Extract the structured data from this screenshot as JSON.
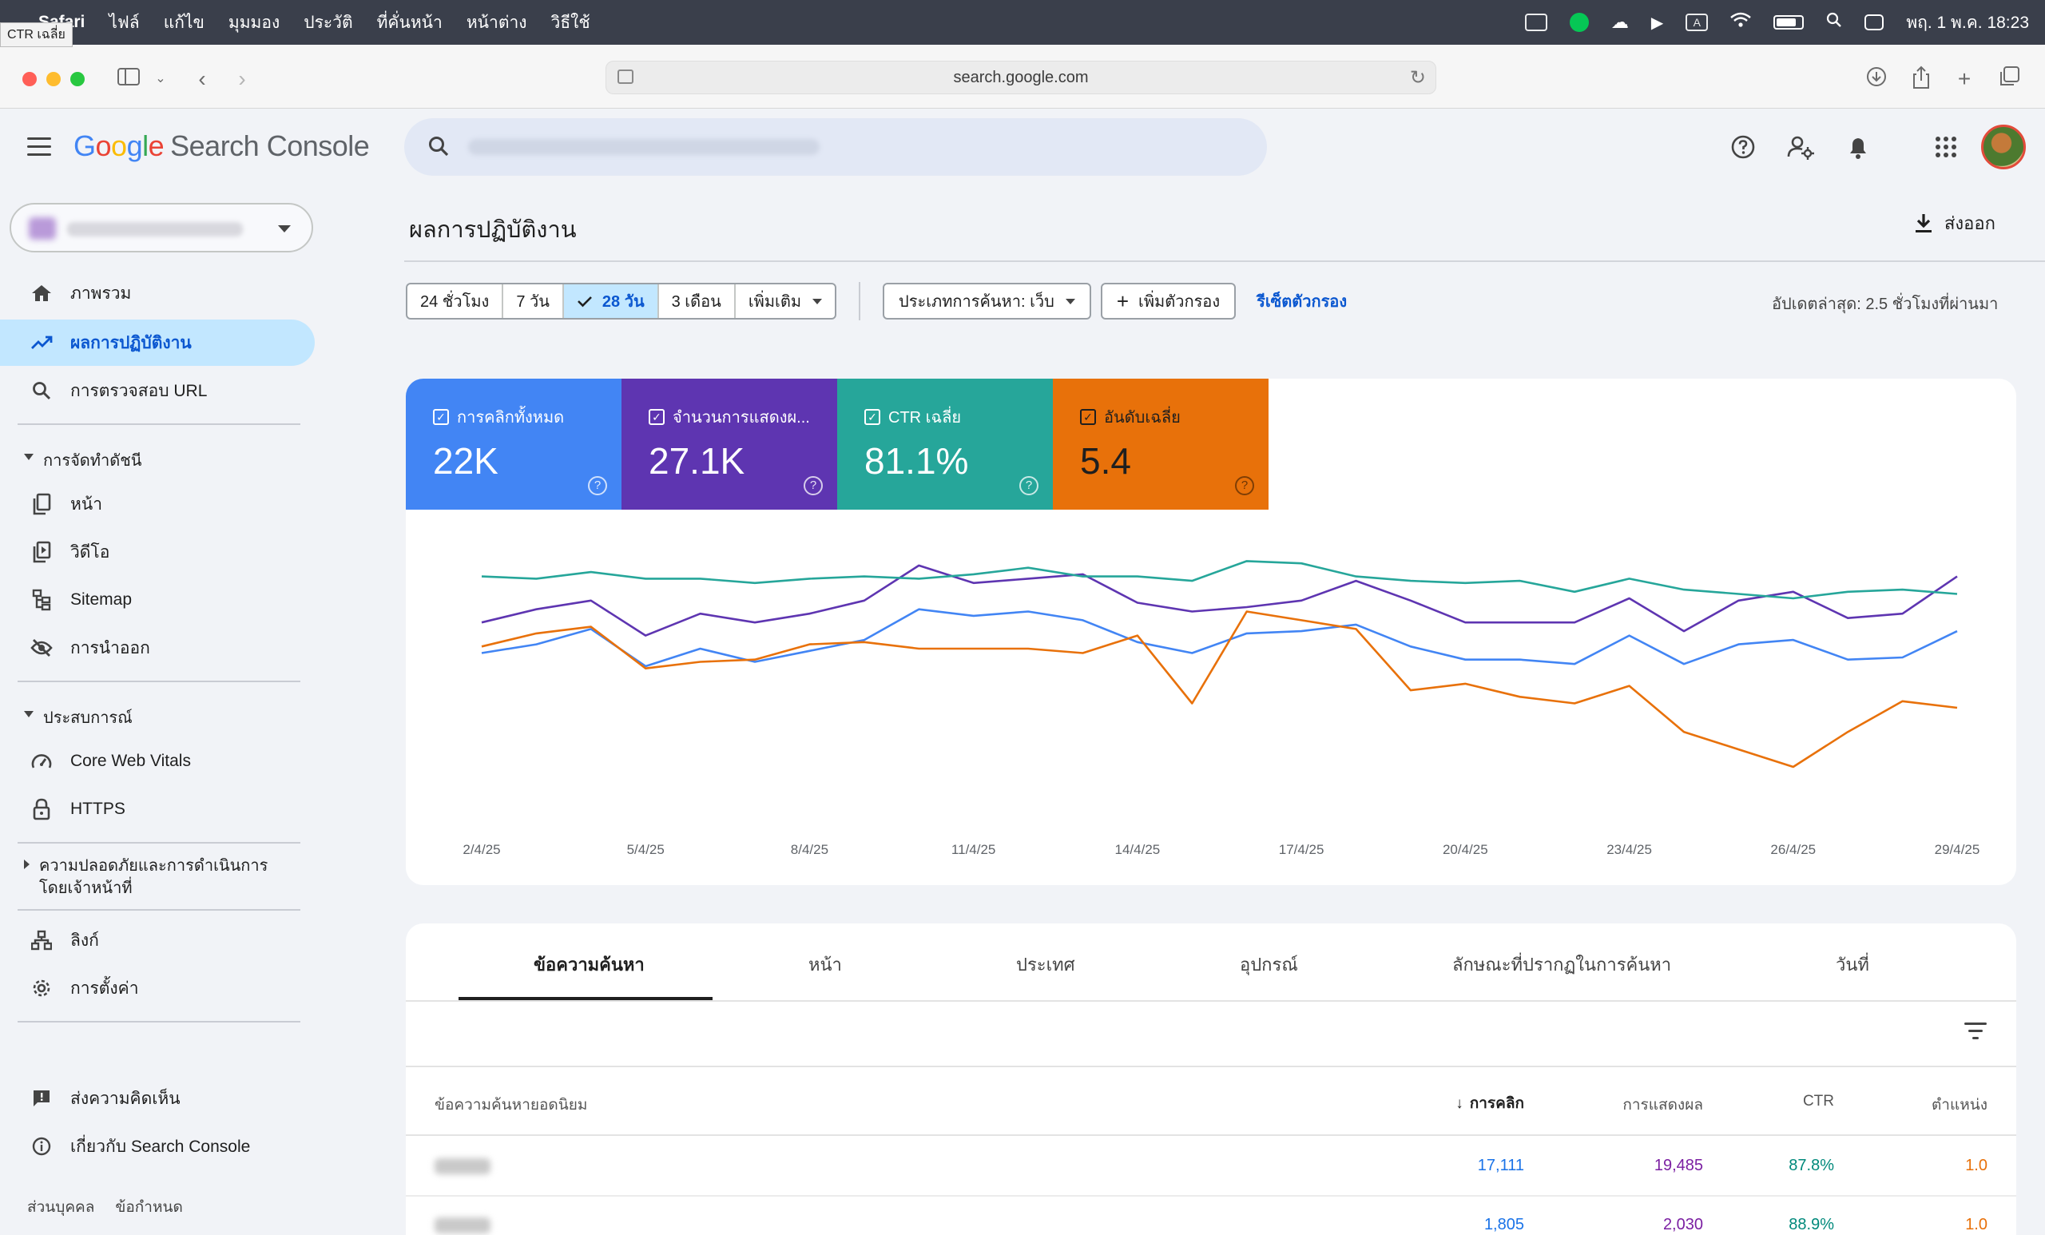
{
  "menubar": {
    "app": "Safari",
    "items": [
      "ไฟล์",
      "แก้ไข",
      "มุมมอง",
      "ประวัติ",
      "ที่คั่นหน้า",
      "หน้าต่าง",
      "วิธีใช้"
    ],
    "clock": "พฤ. 1 พ.ค.  18:23",
    "tooltip": "CTR เฉลี่ย"
  },
  "browser": {
    "url": "search.google.com"
  },
  "header": {
    "logo_google": [
      "G",
      "o",
      "o",
      "g",
      "l",
      "e"
    ],
    "logo_product": "Search Console",
    "icons": [
      "help-icon",
      "manage-users-icon",
      "notifications-icon",
      "apps-grid-icon"
    ]
  },
  "sidebar": {
    "items": [
      {
        "label": "ภาพรวม",
        "icon": "home-icon"
      },
      {
        "label": "ผลการปฏิบัติงาน",
        "icon": "trending-up-icon"
      },
      {
        "label": "การตรวจสอบ URL",
        "icon": "search-icon"
      },
      {
        "label": "หน้า",
        "icon": "pages-icon"
      },
      {
        "label": "วิดีโอ",
        "icon": "video-icon"
      },
      {
        "label": "Sitemap",
        "icon": "sitemap-icon"
      },
      {
        "label": "การนำออก",
        "icon": "visibility-off-icon"
      },
      {
        "label": "Core Web Vitals",
        "icon": "speed-icon"
      },
      {
        "label": "HTTPS",
        "icon": "lock-icon"
      },
      {
        "label": "ลิงก์",
        "icon": "links-icon"
      },
      {
        "label": "การตั้งค่า",
        "icon": "settings-icon"
      },
      {
        "label": "ส่งความคิดเห็น",
        "icon": "feedback-icon"
      },
      {
        "label": "เกี่ยวกับ Search Console",
        "icon": "info-icon"
      }
    ],
    "sections": [
      "การจัดทำดัชนี",
      "ประสบการณ์",
      "ความปลอดภัยและการดำเนินการโดยเจ้าหน้าที่"
    ],
    "footer": [
      "ส่วนบุคคล",
      "ข้อกำหนด"
    ]
  },
  "main": {
    "title": "ผลการปฏิบัติงาน",
    "export_label": "ส่งออก",
    "date_ranges": [
      "24 ชั่วโมง",
      "7 วัน",
      "28 วัน",
      "3 เดือน",
      "เพิ่มเติม"
    ],
    "selected_range": "28 วัน",
    "search_type_chip": "ประเภทการค้นหา: เว็บ",
    "add_filter": "เพิ่มตัวกรอง",
    "reset_filters": "รีเซ็ตตัวกรอง",
    "updated": "อัปเดตล่าสุด: 2.5 ชั่วโมงที่ผ่านมา"
  },
  "metrics": [
    {
      "label": "การคลิกทั้งหมด",
      "value": "22K",
      "color": "#4285f4"
    },
    {
      "label": "จำนวนการแสดงผ...",
      "value": "27.1K",
      "color": "#5e35b1"
    },
    {
      "label": "CTR เฉลี่ย",
      "value": "81.1%",
      "color": "#26a69a"
    },
    {
      "label": "อันดับเฉลี่ย",
      "value": "5.4",
      "color": "#e8710a"
    }
  ],
  "chart_data": {
    "type": "line",
    "x": [
      "2/4/25",
      "3/4/25",
      "4/4/25",
      "5/4/25",
      "6/4/25",
      "7/4/25",
      "8/4/25",
      "9/4/25",
      "10/4/25",
      "11/4/25",
      "12/4/25",
      "13/4/25",
      "14/4/25",
      "15/4/25",
      "16/4/25",
      "17/4/25",
      "18/4/25",
      "19/4/25",
      "20/4/25",
      "21/4/25",
      "22/4/25",
      "23/4/25",
      "24/4/25",
      "25/4/25",
      "26/4/25",
      "27/4/25",
      "28/4/25",
      "29/4/25"
    ],
    "x_tick_labels": [
      "2/4/25",
      "5/4/25",
      "8/4/25",
      "11/4/25",
      "14/4/25",
      "17/4/25",
      "20/4/25",
      "23/4/25",
      "26/4/25",
      "29/4/25"
    ],
    "y_scale": "independent per series (normalized 0-100)",
    "grid": false,
    "series": [
      {
        "name": "การคลิกทั้งหมด",
        "color": "#4285f4",
        "values": [
          52,
          56,
          63,
          46,
          54,
          48,
          53,
          58,
          72,
          69,
          71,
          67,
          57,
          52,
          61,
          62,
          65,
          55,
          49,
          49,
          47,
          60,
          47,
          56,
          58,
          49,
          50,
          62
        ]
      },
      {
        "name": "จำนวนการแสดงผ...",
        "color": "#5e35b1",
        "values": [
          66,
          72,
          76,
          60,
          70,
          66,
          70,
          76,
          92,
          84,
          86,
          88,
          75,
          71,
          73,
          76,
          85,
          76,
          66,
          66,
          66,
          77,
          62,
          76,
          80,
          68,
          70,
          87
        ]
      },
      {
        "name": "CTR เฉลี่ย",
        "color": "#26a69a",
        "values": [
          87,
          86,
          89,
          86,
          86,
          84,
          86,
          87,
          86,
          88,
          91,
          87,
          87,
          85,
          94,
          93,
          87,
          85,
          84,
          85,
          80,
          86,
          81,
          79,
          77,
          80,
          81,
          79
        ]
      },
      {
        "name": "อันดับเฉลี่ย",
        "color": "#e8710a",
        "values": [
          55,
          61,
          64,
          45,
          48,
          49,
          56,
          57,
          54,
          54,
          54,
          52,
          60,
          29,
          71,
          67,
          63,
          35,
          38,
          32,
          29,
          37,
          16,
          8,
          0,
          16,
          30,
          27
        ]
      }
    ]
  },
  "table": {
    "tabs": [
      "ข้อความค้นหา",
      "หน้า",
      "ประเทศ",
      "อุปกรณ์",
      "ลักษณะที่ปรากฏในการค้นหา",
      "วันที่"
    ],
    "headers": {
      "query": "ข้อความค้นหายอดนิยม",
      "clicks": "การคลิก",
      "impressions": "การแสดงผล",
      "ctr": "CTR",
      "position": "ตำแหน่ง"
    },
    "rows": [
      {
        "clicks": "17,111",
        "impressions": "19,485",
        "ctr": "87.8%",
        "position": "1.0"
      },
      {
        "clicks": "1,805",
        "impressions": "2,030",
        "ctr": "88.9%",
        "position": "1.0"
      }
    ]
  }
}
